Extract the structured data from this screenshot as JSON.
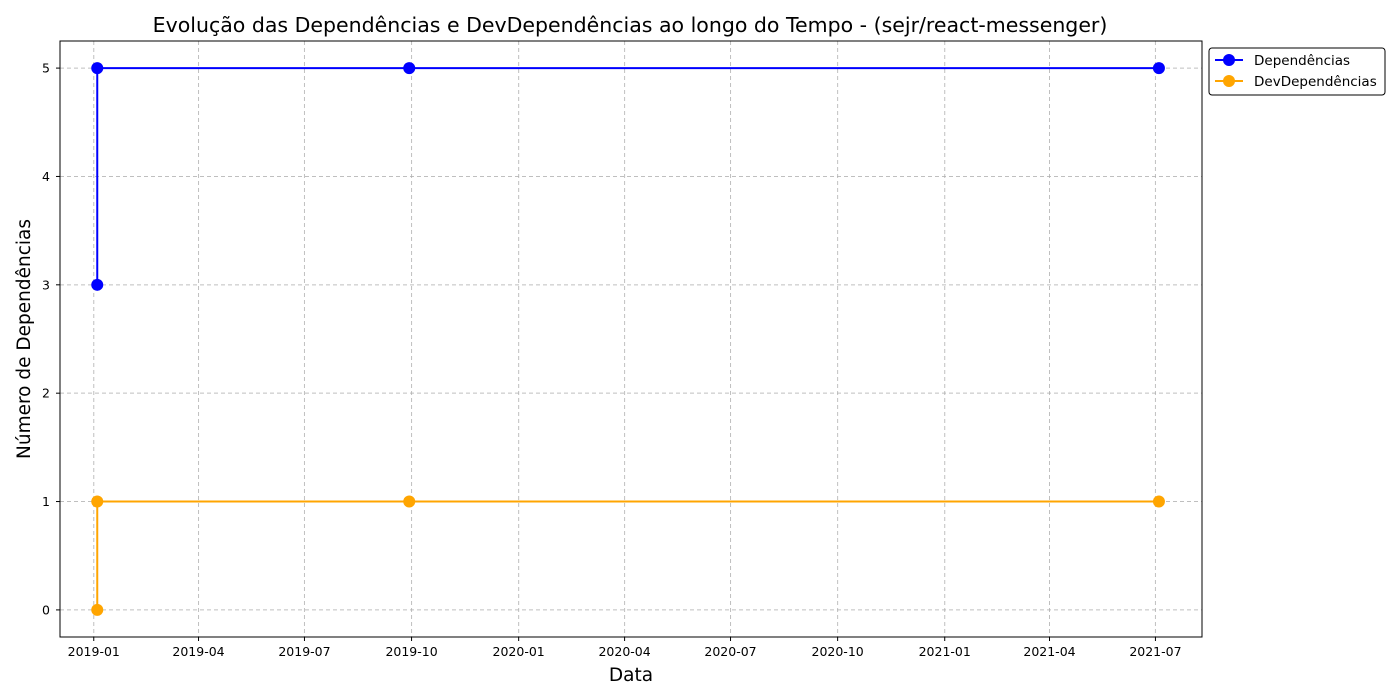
{
  "chart_data": {
    "type": "line",
    "title": "Evolução das Dependências e DevDependências ao longo do Tempo - (sejr/react-messenger)",
    "xlabel": "Data",
    "ylabel": "Número de Dependências",
    "x_tick_labels": [
      "2019-01",
      "2019-04",
      "2019-07",
      "2019-10",
      "2020-01",
      "2020-04",
      "2020-07",
      "2020-10",
      "2021-01",
      "2021-04",
      "2021-07"
    ],
    "y_ticks": [
      0,
      1,
      2,
      3,
      4,
      5
    ],
    "ylim": [
      -0.25,
      5.25
    ],
    "xlim": [
      "2018-12-03",
      "2021-08-10"
    ],
    "grid": true,
    "legend_position": "outside top-right",
    "series": [
      {
        "name": "Dependências",
        "color": "#0000ff",
        "points": [
          {
            "x": "2019-01-04",
            "y": 3
          },
          {
            "x": "2019-01-04",
            "y": 5
          },
          {
            "x": "2019-09-29",
            "y": 5
          },
          {
            "x": "2021-07-04",
            "y": 5
          }
        ]
      },
      {
        "name": "DevDependências",
        "color": "#ffa500",
        "points": [
          {
            "x": "2019-01-04",
            "y": 0
          },
          {
            "x": "2019-01-04",
            "y": 1
          },
          {
            "x": "2019-09-29",
            "y": 1
          },
          {
            "x": "2021-07-04",
            "y": 1
          }
        ]
      }
    ]
  }
}
